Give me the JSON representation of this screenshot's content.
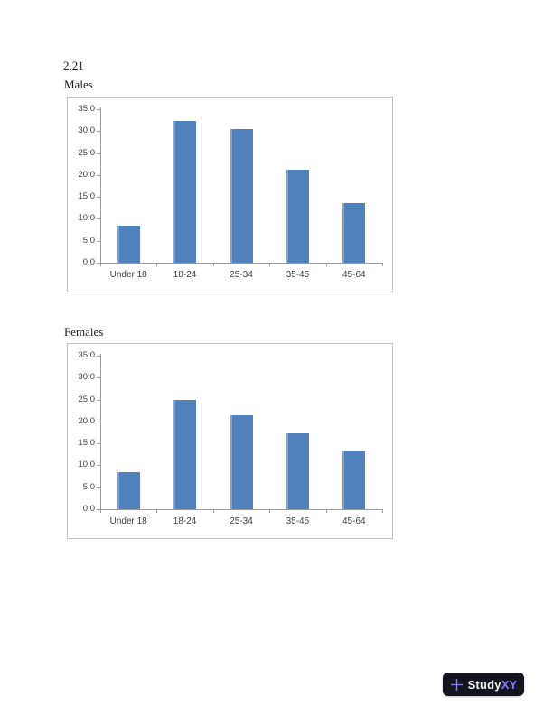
{
  "page": {
    "problem_number": "2.21"
  },
  "chart_data": [
    {
      "type": "bar",
      "title": "Males",
      "categories": [
        "Under 18",
        "18-24",
        "25-34",
        "35-45",
        "45-64"
      ],
      "values": [
        8.4,
        32.3,
        30.4,
        21.3,
        13.5
      ],
      "xlabel": "",
      "ylabel": "",
      "ylim": [
        0,
        35
      ],
      "ytick_step": 5,
      "ytick_format": "one-decimal",
      "grid": false,
      "legend": "none",
      "bar_color": "#4f81bd"
    },
    {
      "type": "bar",
      "title": "Females",
      "categories": [
        "Under 18",
        "18-24",
        "25-34",
        "35-45",
        "45-64"
      ],
      "values": [
        8.5,
        24.9,
        21.4,
        17.2,
        13.1
      ],
      "xlabel": "",
      "ylabel": "",
      "ylim": [
        0,
        35
      ],
      "ytick_step": 5,
      "ytick_format": "one-decimal",
      "grid": false,
      "legend": "none",
      "bar_color": "#4f81bd"
    }
  ],
  "logo": {
    "prefix": "Study",
    "suffix": "XY",
    "plus": "+"
  },
  "colors": {
    "bar": "#4f81bd",
    "bar_edge": "#7da4d2",
    "chart_border": "#c3c3c3",
    "axis": "#9b9b9b",
    "tick_label": "#3f3f3f",
    "heading": "#1c1c1c",
    "logo_bg": "#14141f",
    "logo_accent": "#8678f1",
    "logo_text": "#f2f2f5",
    "page_bg": "#ffffff"
  }
}
